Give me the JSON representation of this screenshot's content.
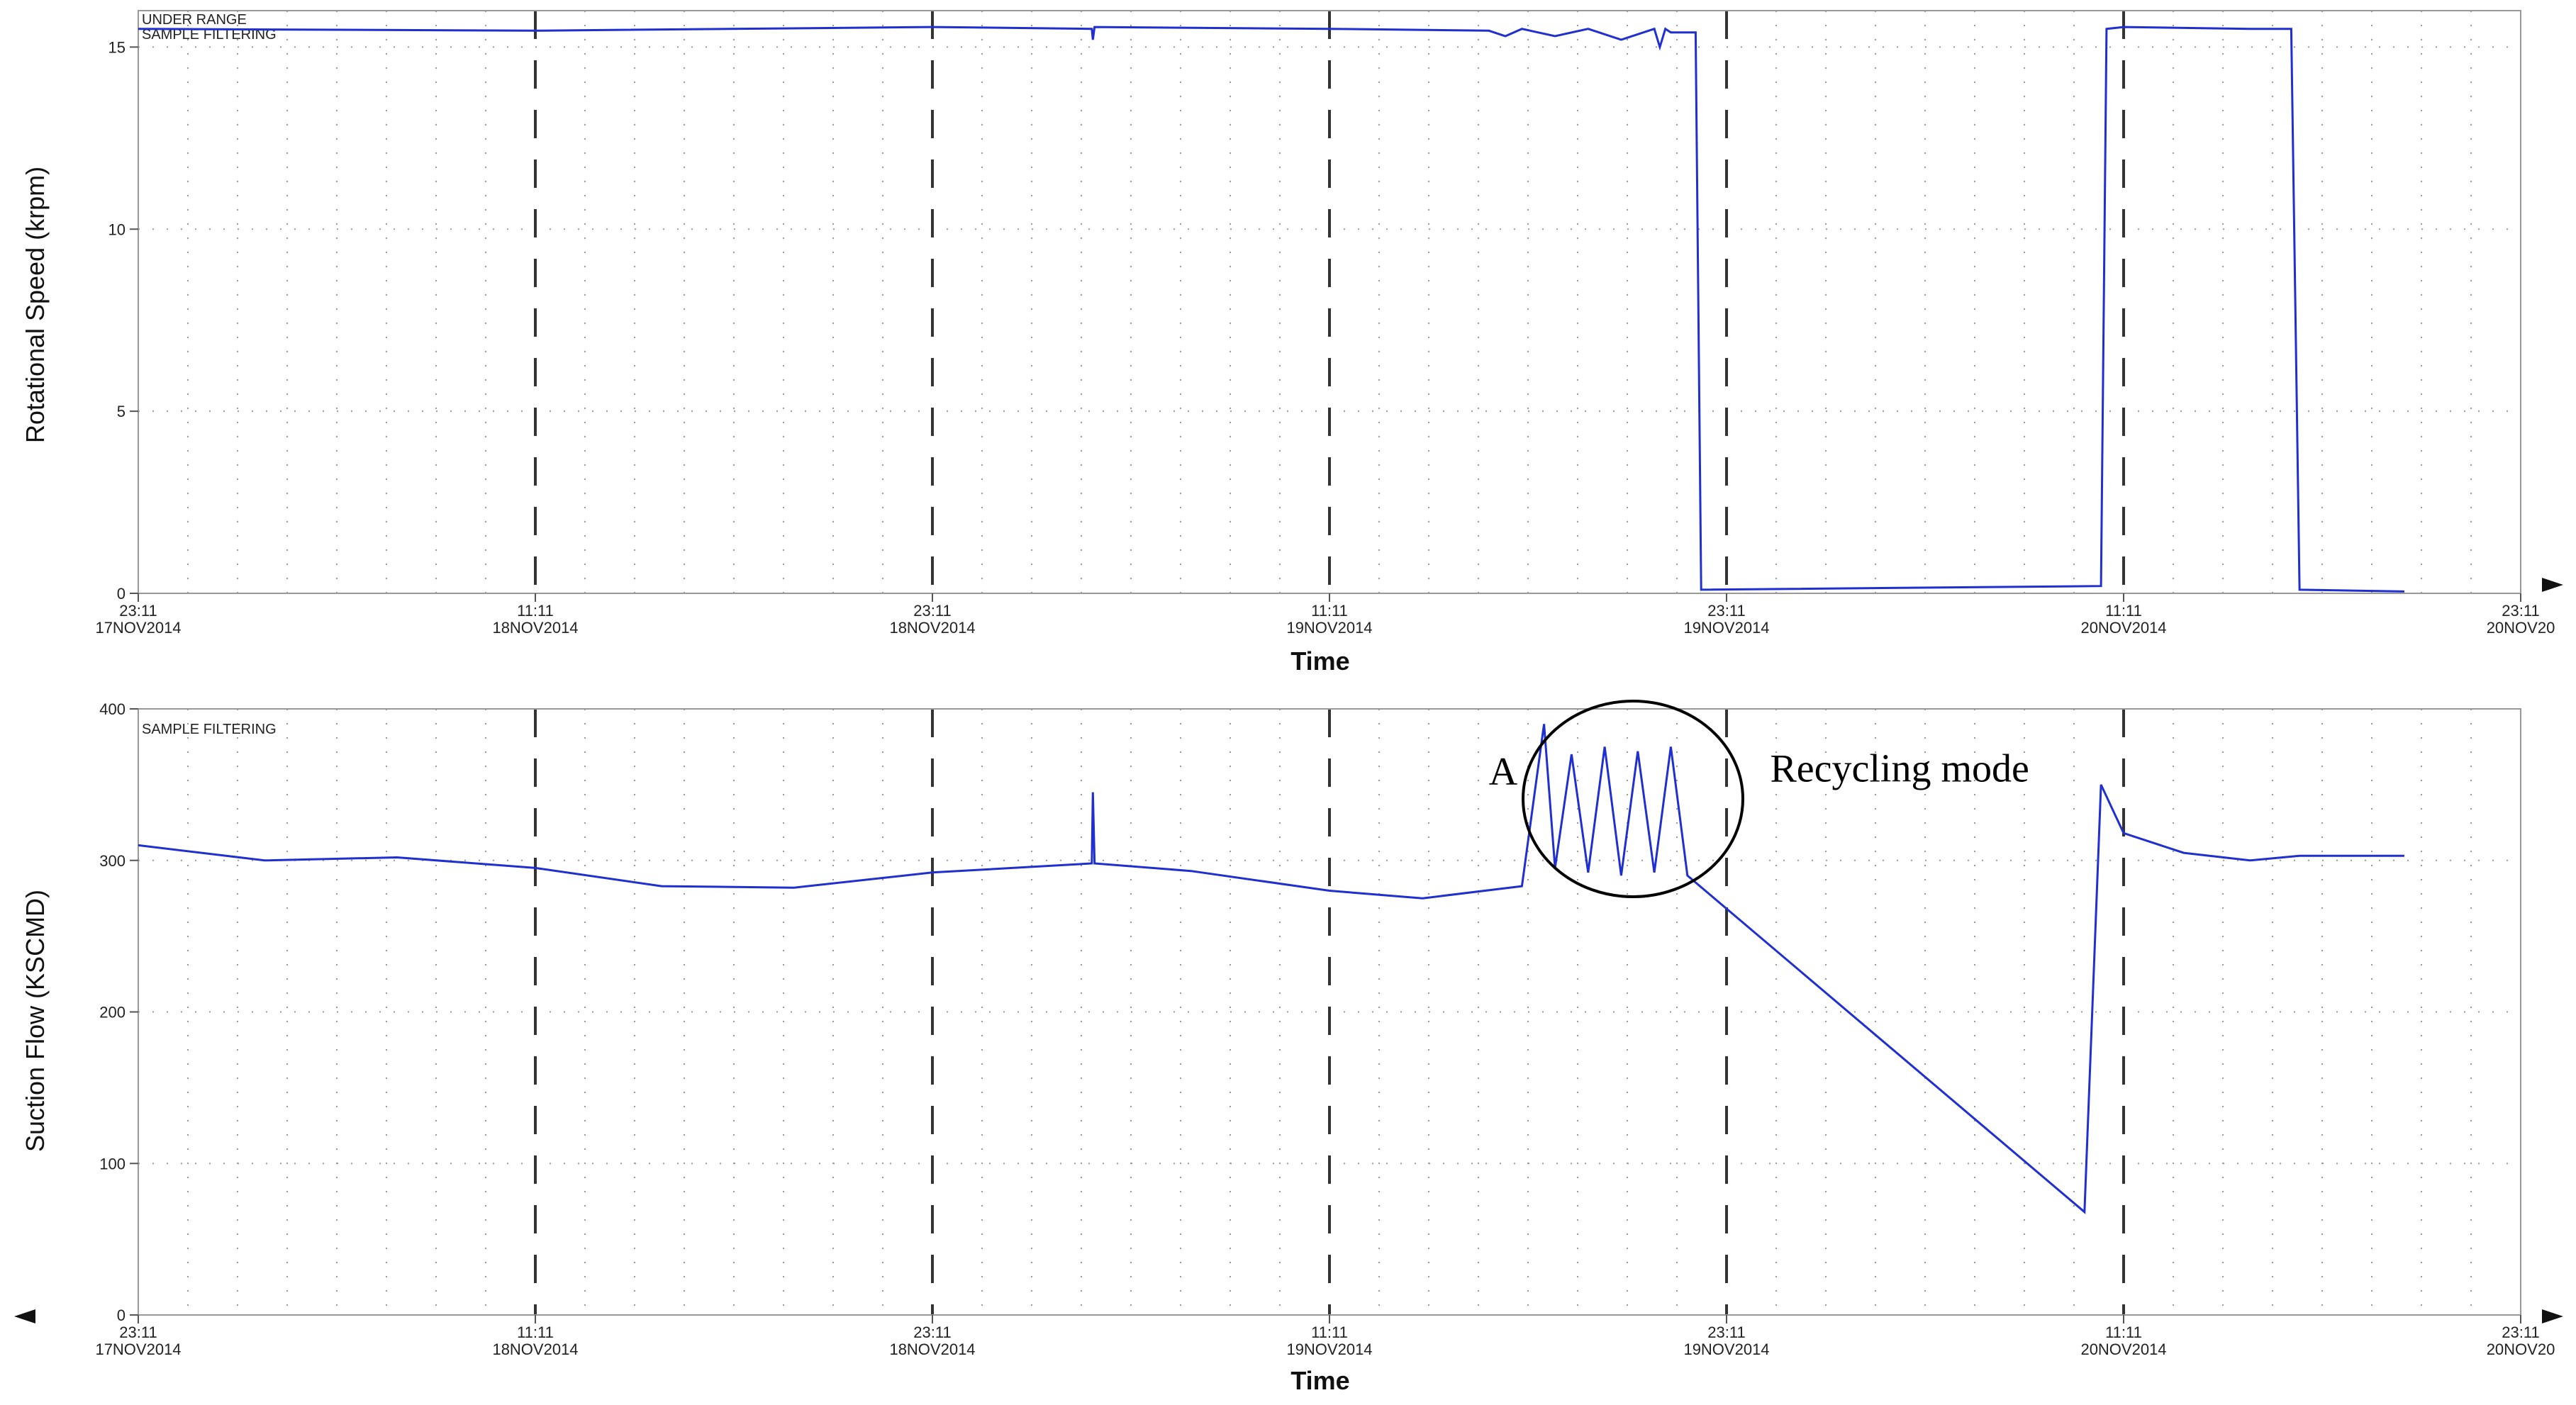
{
  "colors": {
    "series": "#1f2fd0",
    "frame": "#999999",
    "grid_major": "#333333",
    "grid_minor": "#9a9a9a"
  },
  "x_tick_labels": [
    {
      "time": "23:11",
      "date": "17NOV2014"
    },
    {
      "time": "11:11",
      "date": "18NOV2014"
    },
    {
      "time": "23:11",
      "date": "18NOV2014"
    },
    {
      "time": "11:11",
      "date": "19NOV2014"
    },
    {
      "time": "23:11",
      "date": "19NOV2014"
    },
    {
      "time": "11:11",
      "date": "20NOV2014"
    },
    {
      "time": "23:11",
      "date": "20NOV20"
    }
  ],
  "chart_data": [
    {
      "type": "line",
      "ylabel": "Rotational Speed (krpm)",
      "xlabel": "Time",
      "status_lines": [
        "UNDER RANGE",
        "SAMPLE FILTERING"
      ],
      "ylim": [
        0,
        16
      ],
      "yticks": [
        0,
        5,
        10,
        15
      ],
      "xlim": [
        "2014-11-17 23:11",
        "2014-11-20 23:11"
      ],
      "grid": true,
      "series": [
        {
          "values": [
            [
              "2014-11-17 23:11",
              15.5
            ],
            [
              "2014-11-18 11:11",
              15.45
            ],
            [
              "2014-11-18 23:11",
              15.55
            ],
            [
              "2014-11-19 04:00",
              15.5
            ],
            [
              "2014-11-19 04:02",
              15.2
            ],
            [
              "2014-11-19 04:05",
              15.55
            ],
            [
              "2014-11-19 11:11",
              15.5
            ],
            [
              "2014-11-19 16:00",
              15.45
            ],
            [
              "2014-11-19 16:30",
              15.3
            ],
            [
              "2014-11-19 17:00",
              15.5
            ],
            [
              "2014-11-19 18:00",
              15.3
            ],
            [
              "2014-11-19 19:00",
              15.5
            ],
            [
              "2014-11-19 20:00",
              15.2
            ],
            [
              "2014-11-19 21:00",
              15.5
            ],
            [
              "2014-11-19 21:10",
              15.0
            ],
            [
              "2014-11-19 21:20",
              15.5
            ],
            [
              "2014-11-19 21:30",
              15.4
            ],
            [
              "2014-11-19 22:15",
              15.4
            ],
            [
              "2014-11-19 22:25",
              0.1
            ],
            [
              "2014-11-20 10:30",
              0.2
            ],
            [
              "2014-11-20 10:40",
              15.5
            ],
            [
              "2014-11-20 11:11",
              15.55
            ],
            [
              "2014-11-20 15:00",
              15.5
            ],
            [
              "2014-11-20 16:15",
              15.5
            ],
            [
              "2014-11-20 16:30",
              0.1
            ],
            [
              "2014-11-20 19:40",
              0.05
            ]
          ]
        }
      ]
    },
    {
      "type": "line",
      "ylabel": "Suction Flow (KSCMD)",
      "xlabel": "Time",
      "status_lines": [
        "SAMPLE FILTERING"
      ],
      "ylim": [
        0,
        400
      ],
      "yticks": [
        0,
        100,
        200,
        300,
        400
      ],
      "xlim": [
        "2014-11-17 23:11",
        "2014-11-20 23:11"
      ],
      "grid": true,
      "annotations": [
        {
          "text": "A",
          "x": "2014-11-19 16:00",
          "y": 350
        },
        {
          "text": "Recycling mode",
          "x": "2014-11-20 00:30",
          "y": 352
        }
      ],
      "series": [
        {
          "values": [
            [
              "2014-11-17 23:11",
              310
            ],
            [
              "2014-11-18 03:00",
              300
            ],
            [
              "2014-11-18 07:00",
              302
            ],
            [
              "2014-11-18 11:11",
              295
            ],
            [
              "2014-11-18 15:00",
              283
            ],
            [
              "2014-11-18 19:00",
              282
            ],
            [
              "2014-11-18 23:11",
              292
            ],
            [
              "2014-11-19 04:00",
              298
            ],
            [
              "2014-11-19 04:02",
              345
            ],
            [
              "2014-11-19 04:05",
              298
            ],
            [
              "2014-11-19 07:00",
              293
            ],
            [
              "2014-11-19 11:11",
              280
            ],
            [
              "2014-11-19 14:00",
              275
            ],
            [
              "2014-11-19 17:00",
              283
            ],
            [
              "2014-11-19 17:40",
              390
            ],
            [
              "2014-11-19 18:00",
              295
            ],
            [
              "2014-11-19 18:30",
              370
            ],
            [
              "2014-11-19 19:00",
              292
            ],
            [
              "2014-11-19 19:30",
              375
            ],
            [
              "2014-11-19 20:00",
              290
            ],
            [
              "2014-11-19 20:30",
              372
            ],
            [
              "2014-11-19 21:00",
              292
            ],
            [
              "2014-11-19 21:30",
              375
            ],
            [
              "2014-11-19 22:00",
              290
            ],
            [
              "2014-11-20 10:00",
              68
            ],
            [
              "2014-11-20 10:30",
              350
            ],
            [
              "2014-11-20 11:11",
              318
            ],
            [
              "2014-11-20 13:00",
              305
            ],
            [
              "2014-11-20 15:00",
              300
            ],
            [
              "2014-11-20 16:30",
              303
            ],
            [
              "2014-11-20 19:40",
              303
            ]
          ]
        }
      ]
    }
  ]
}
